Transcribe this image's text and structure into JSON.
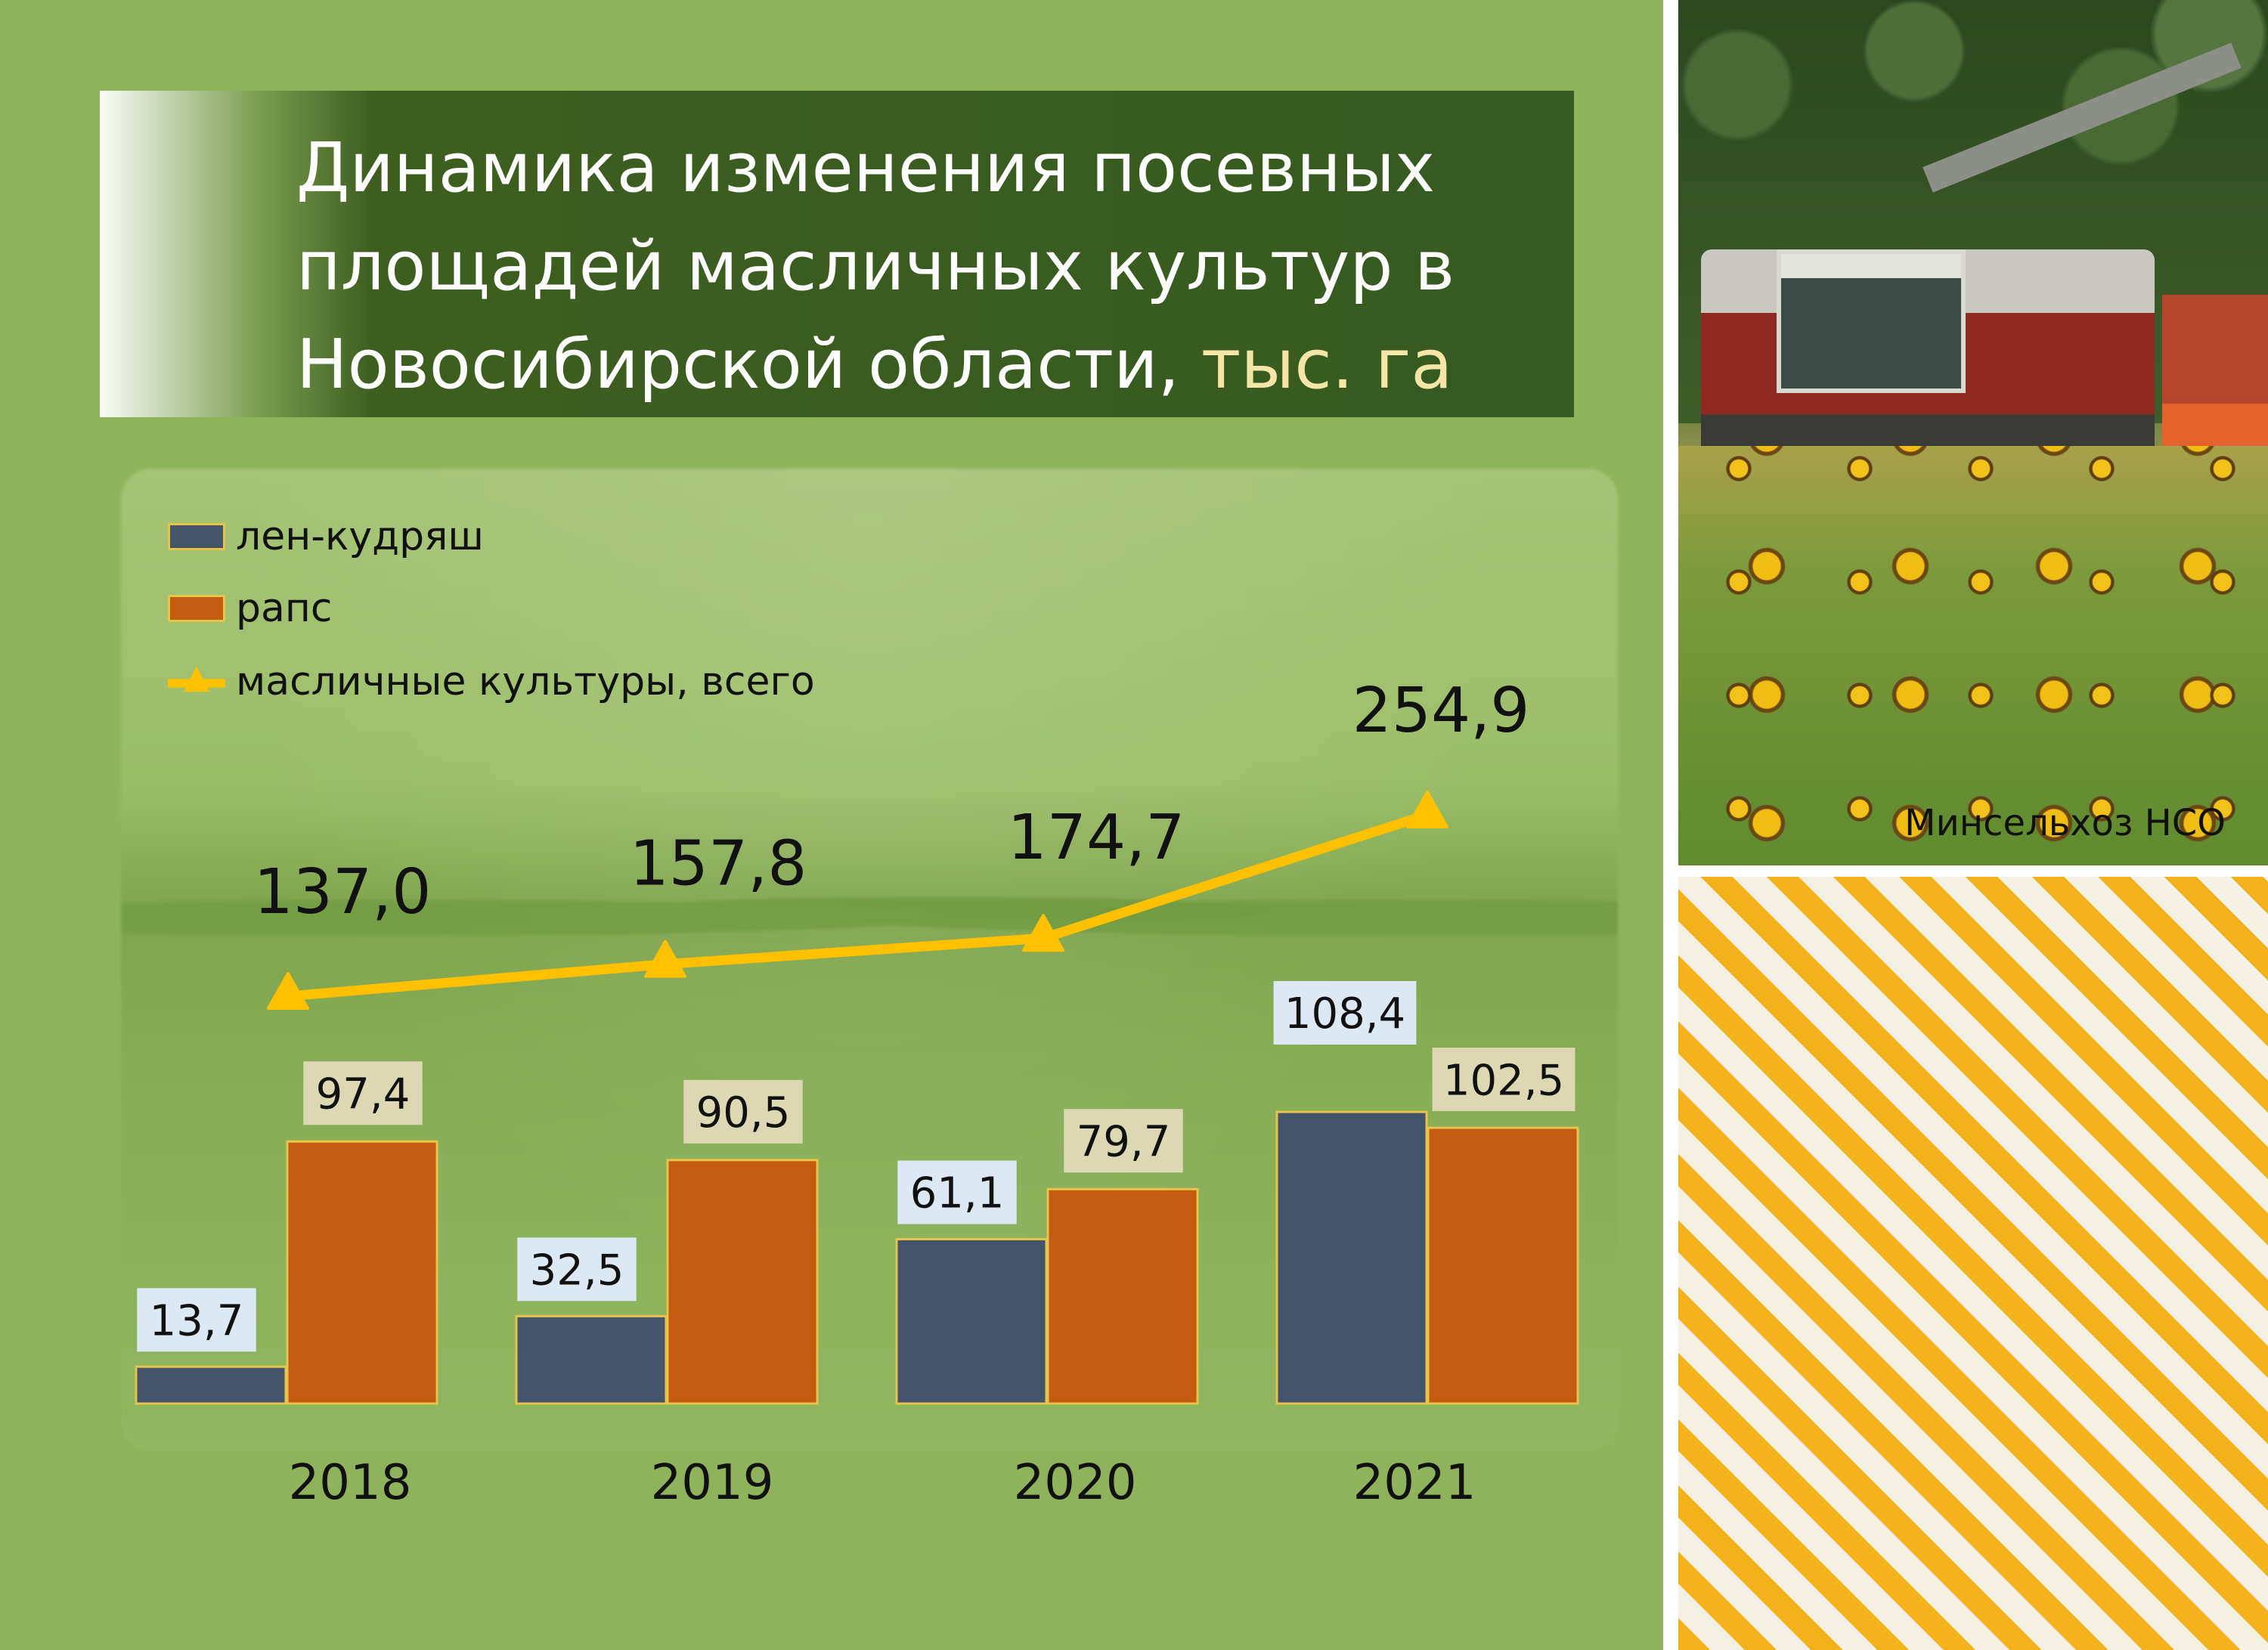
{
  "title": {
    "main": "Динамика изменения посевных площадей масличных культур в Новосибирской области,",
    "unit": "тыс. га"
  },
  "photo_credit": "Минсельхоз НСО",
  "colors": {
    "flax": "#44546a",
    "rape": "#c55a11",
    "total": "#ffc000",
    "bar_outline": "#e6c34a",
    "panel_bg": "#8fb35c",
    "flax_label_bg": "#dce9f5",
    "rape_label_bg": "#ddd7b3"
  },
  "chart_data": {
    "type": "bar",
    "title": "Динамика изменения посевных площадей масличных культур в Новосибирской области, тыс. га",
    "categories": [
      "2018",
      "2019",
      "2020",
      "2021"
    ],
    "series": [
      {
        "name": "лен-кудряш",
        "type": "bar",
        "values": [
          13.7,
          32.5,
          61.1,
          108.4
        ],
        "labels": [
          "13,7",
          "32,5",
          "61,1",
          "108,4"
        ]
      },
      {
        "name": "рапс",
        "type": "bar",
        "values": [
          97.4,
          90.5,
          79.7,
          102.5
        ],
        "labels": [
          "97,4",
          "90,5",
          "79,7",
          "102,5"
        ]
      },
      {
        "name": "масличные культуры, всего",
        "type": "line",
        "marker": "triangle",
        "values": [
          137.0,
          157.8,
          174.7,
          254.9
        ],
        "labels": [
          "137,0",
          "157,8",
          "174,7",
          "254,9"
        ]
      }
    ],
    "legend": {
      "position": "top-left",
      "items": [
        "лен-кудряш",
        "рапс",
        "масличные культуры, всего"
      ]
    },
    "grid": false,
    "y_axis_visible": false
  }
}
